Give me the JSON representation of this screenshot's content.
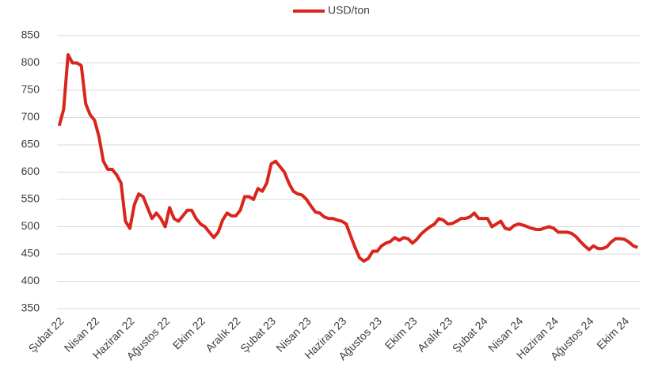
{
  "chart_data": {
    "type": "line",
    "categories": [
      "Şubat 22",
      null,
      null,
      null,
      null,
      null,
      null,
      null,
      "Nisan 22",
      null,
      null,
      null,
      null,
      null,
      null,
      null,
      "Haziran 22",
      null,
      null,
      null,
      null,
      null,
      null,
      null,
      "Ağustos 22",
      null,
      null,
      null,
      null,
      null,
      null,
      null,
      "Ekim 22",
      null,
      null,
      null,
      null,
      null,
      null,
      null,
      "Aralık 22",
      null,
      null,
      null,
      null,
      null,
      null,
      null,
      "Şubat 23",
      null,
      null,
      null,
      null,
      null,
      null,
      null,
      "Nisan 23",
      null,
      null,
      null,
      null,
      null,
      null,
      null,
      "Haziran 23",
      null,
      null,
      null,
      null,
      null,
      null,
      null,
      "Ağustos 23",
      null,
      null,
      null,
      null,
      null,
      null,
      null,
      "Ekim 23",
      null,
      null,
      null,
      null,
      null,
      null,
      null,
      "Aralık 23",
      null,
      null,
      null,
      null,
      null,
      null,
      null,
      "Şubat 24",
      null,
      null,
      null,
      null,
      null,
      null,
      null,
      "Nisan 24",
      null,
      null,
      null,
      null,
      null,
      null,
      null,
      "Haziran 24",
      null,
      null,
      null,
      null,
      null,
      null,
      null,
      "Ağustos 24",
      null,
      null,
      null,
      null,
      null,
      null,
      null,
      "Ekim 24",
      null,
      null,
      null
    ],
    "series": [
      {
        "name": "USD/ton",
        "color": "#d9261c",
        "values": [
          685,
          715,
          815,
          800,
          800,
          795,
          725,
          705,
          695,
          665,
          620,
          605,
          605,
          595,
          580,
          510,
          497,
          540,
          560,
          555,
          535,
          515,
          525,
          515,
          500,
          535,
          515,
          510,
          520,
          530,
          530,
          515,
          505,
          500,
          490,
          480,
          490,
          512,
          525,
          520,
          520,
          530,
          555,
          555,
          550,
          570,
          565,
          580,
          615,
          620,
          610,
          600,
          580,
          565,
          560,
          558,
          550,
          538,
          527,
          525,
          518,
          515,
          515,
          512,
          510,
          505,
          483,
          462,
          443,
          437,
          442,
          455,
          455,
          465,
          470,
          473,
          480,
          475,
          480,
          478,
          470,
          477,
          487,
          494,
          500,
          505,
          515,
          512,
          505,
          506,
          510,
          515,
          515,
          518,
          525,
          515,
          515,
          515,
          500,
          505,
          510,
          497,
          495,
          502,
          505,
          503,
          500,
          497,
          495,
          495,
          498,
          500,
          497,
          490,
          490,
          490,
          488,
          482,
          473,
          465,
          458,
          465,
          460,
          460,
          463,
          472,
          478,
          478,
          477,
          472,
          465,
          462
        ]
      }
    ],
    "ylim": [
      350,
      850
    ],
    "yticks": [
      350,
      400,
      450,
      500,
      550,
      600,
      650,
      700,
      750,
      800,
      850
    ],
    "grid": true,
    "legend": "top"
  }
}
